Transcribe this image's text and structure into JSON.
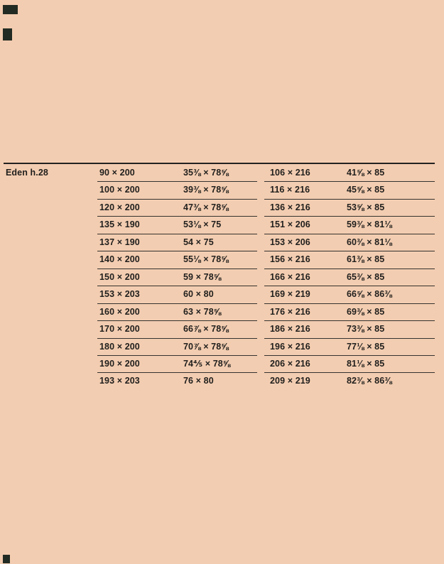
{
  "page": {
    "type": "catalog-size-table",
    "colors": {
      "background": "#f3cdb1",
      "text": "#201f1d",
      "rule": "#2b2a28",
      "corner_mark": "#222b23"
    }
  },
  "table": {
    "label": "Eden h.28",
    "columns": [
      "mattress_cm",
      "mattress_in",
      "overall_cm",
      "overall_in"
    ],
    "rows": [
      {
        "mattress_cm": "90 × 200",
        "mattress_in": "35⅜ × 78⅝",
        "overall_cm": "106 × 216",
        "overall_in": "41⅝ × 85"
      },
      {
        "mattress_cm": "100 × 200",
        "mattress_in": "39⅜ × 78⅝",
        "overall_cm": "116 × 216",
        "overall_in": "45⅝ × 85"
      },
      {
        "mattress_cm": "120 × 200",
        "mattress_in": "47⅜ × 78⅝",
        "overall_cm": "136 × 216",
        "overall_in": "53⅝ × 85"
      },
      {
        "mattress_cm": "135 × 190",
        "mattress_in": "53⅛ × 75",
        "overall_cm": "151 × 206",
        "overall_in": "59⅜ × 81⅛"
      },
      {
        "mattress_cm": "137 × 190",
        "mattress_in": "54 × 75",
        "overall_cm": "153 × 206",
        "overall_in": "60⅜ × 81⅛"
      },
      {
        "mattress_cm": "140 × 200",
        "mattress_in": "55⅛ × 78⅝",
        "overall_cm": "156 × 216",
        "overall_in": "61⅜ × 85"
      },
      {
        "mattress_cm": "150 × 200",
        "mattress_in": "59 × 78⅝",
        "overall_cm": "166 × 216",
        "overall_in": "65⅜ × 85"
      },
      {
        "mattress_cm": "153 × 203",
        "mattress_in": "60 × 80",
        "overall_cm": "169 × 219",
        "overall_in": "66⅝ × 86⅜"
      },
      {
        "mattress_cm": "160 × 200",
        "mattress_in": "63 × 78⅝",
        "overall_cm": "176 × 216",
        "overall_in": "69⅜ × 85"
      },
      {
        "mattress_cm": "170 × 200",
        "mattress_in": "66⅞ × 78⅝",
        "overall_cm": "186 × 216",
        "overall_in": "73⅜ × 85"
      },
      {
        "mattress_cm": "180 × 200",
        "mattress_in": "70⅞ × 78⅝",
        "overall_cm": "196 × 216",
        "overall_in": "77⅛ × 85"
      },
      {
        "mattress_cm": "190 × 200",
        "mattress_in": "74⅘ × 78⅝",
        "overall_cm": "206 × 216",
        "overall_in": "81⅛ × 85"
      },
      {
        "mattress_cm": "193 × 203",
        "mattress_in": "76 × 80",
        "overall_cm": "209 × 219",
        "overall_in": "82⅜ × 86⅜"
      }
    ]
  }
}
